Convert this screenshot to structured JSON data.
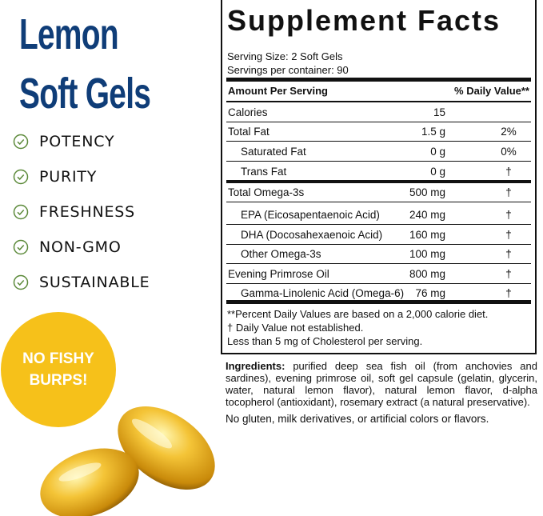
{
  "product": {
    "title_line1": "Lemon",
    "title_line2": "Soft Gels",
    "title_color": "#0f3d78"
  },
  "features": [
    {
      "label": "POTENCY",
      "icon": "check-circle-icon"
    },
    {
      "label": "PURITY",
      "icon": "check-circle-icon"
    },
    {
      "label": "FRESHNESS",
      "icon": "check-circle-icon"
    },
    {
      "label": "NON-GMO",
      "icon": "check-circle-icon"
    },
    {
      "label": "SUSTAINABLE",
      "icon": "check-circle-icon"
    }
  ],
  "badge": {
    "line1": "NO FISHY",
    "line2": "BURPS!",
    "color": "#f6c11a"
  },
  "facts": {
    "title": "Supplement Facts",
    "serving_size": "Serving Size: 2 Soft Gels",
    "servings_per_container": "Servings per container: 90",
    "header_amount": "Amount Per Serving",
    "header_dv": "% Daily Value**",
    "rows": [
      {
        "name": "Calories",
        "amount": "15",
        "dv": ""
      },
      {
        "name": "Total Fat",
        "amount": "1.5 g",
        "dv": "2%"
      },
      {
        "name": "Saturated Fat",
        "amount": "0 g",
        "dv": "0%"
      },
      {
        "name": "Trans Fat",
        "amount": "0 g",
        "dv": "†"
      },
      {
        "name": "Total Omega-3s",
        "amount": "500 mg",
        "dv": "†"
      },
      {
        "name": "EPA (Eicosapentaenoic Acid)",
        "amount": "240 mg",
        "dv": "†"
      },
      {
        "name": "DHA (Docosahexaenoic Acid)",
        "amount": "160 mg",
        "dv": "†"
      },
      {
        "name": "Other Omega-3s",
        "amount": "100 mg",
        "dv": "†"
      },
      {
        "name": "Evening Primrose Oil",
        "amount": "800 mg",
        "dv": "†"
      },
      {
        "name": "Gamma-Linolenic Acid (Omega-6)",
        "amount": "76 mg",
        "dv": "†"
      }
    ],
    "footnotes": [
      "**Percent Daily Values are based on a 2,000 calorie diet.",
      "†  Daily Value not established.",
      "Less than 5 mg of Cholesterol per serving."
    ]
  },
  "ingredients": {
    "label": "Ingredients:",
    "text": " purified deep sea fish oil (from anchovies and sardines), evening primrose oil, soft gel capsule (gelatin, glycerin, water, natural lemon flavor), natural lemon flavor, d-alpha tocopherol (antioxidant), rosemary extract (a natural preservative).",
    "free_from": "No gluten, milk derivatives, or artificial colors or flavors."
  }
}
